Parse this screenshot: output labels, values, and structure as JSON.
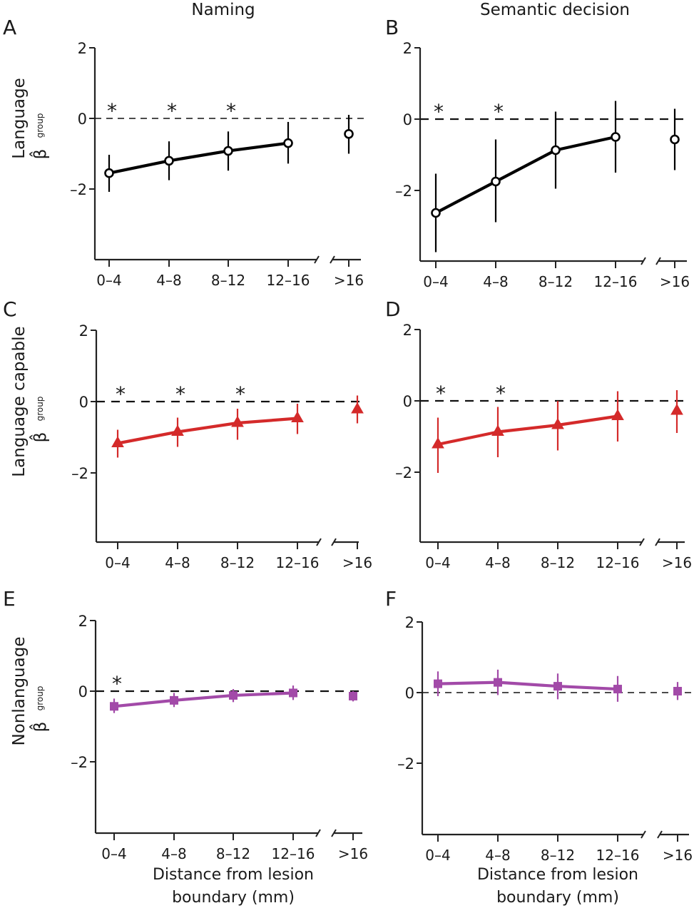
{
  "figure": {
    "column_titles": [
      "Naming",
      "Semantic decision"
    ],
    "row_labels": [
      "Language",
      "Language capable",
      "Nonlanguage"
    ],
    "y_symbol": "β̂",
    "y_subscript": "group",
    "xlabel_line1": "Distance from lesion",
    "xlabel_line2": "boundary (mm)",
    "colors": {
      "Language": "#000000",
      "Language capable": "#d42a2a",
      "Nonlanguage": "#a24aa8"
    }
  },
  "chart_data": [
    {
      "panel": "A",
      "type": "line",
      "title": "Naming",
      "row": "Language",
      "xlabel": "",
      "ylabel": "Language β̂ group",
      "categories": [
        "0–4",
        "4–8",
        "8–12",
        "12–16",
        ">16"
      ],
      "yticks": [
        2,
        0,
        -2
      ],
      "ytick_labels": [
        "2",
        "0",
        "–2"
      ],
      "ylim": [
        -3.8,
        2
      ],
      "marker": "circle",
      "color": "#000000",
      "values": [
        -1.55,
        -1.2,
        -0.92,
        -0.7,
        -0.44
      ],
      "err_low": [
        -2.08,
        -1.75,
        -1.48,
        -1.28,
        -1.0
      ],
      "err_high": [
        -1.03,
        -0.65,
        -0.37,
        -0.1,
        0.1
      ],
      "significant": [
        true,
        true,
        true,
        false,
        false
      ],
      "connected": [
        true,
        true,
        true,
        true,
        false
      ],
      "reference_line": 0
    },
    {
      "panel": "B",
      "type": "line",
      "title": "Semantic decision",
      "row": "Language",
      "xlabel": "",
      "ylabel": "",
      "categories": [
        "0–4",
        "4–8",
        "8–12",
        "12–16",
        ">16"
      ],
      "yticks": [
        2,
        0,
        -2
      ],
      "ytick_labels": [
        "2",
        "0",
        "–2"
      ],
      "ylim": [
        -3.8,
        2
      ],
      "marker": "circle",
      "color": "#000000",
      "values": [
        -2.63,
        -1.75,
        -0.87,
        -0.5,
        -0.57
      ],
      "err_low": [
        -3.73,
        -2.89,
        -1.95,
        -1.5,
        -1.43
      ],
      "err_high": [
        -1.53,
        -0.57,
        0.21,
        0.51,
        0.29
      ],
      "significant": [
        true,
        true,
        false,
        false,
        false
      ],
      "connected": [
        true,
        true,
        true,
        true,
        false
      ],
      "reference_line": 0
    },
    {
      "panel": "C",
      "type": "line",
      "title": "",
      "row": "Language capable",
      "xlabel": "",
      "ylabel": "Language capable β̂ group",
      "categories": [
        "0–4",
        "4–8",
        "8–12",
        "12–16",
        ">16"
      ],
      "yticks": [
        2,
        0,
        -2
      ],
      "ytick_labels": [
        "2",
        "0",
        "–2"
      ],
      "ylim": [
        -3.8,
        2
      ],
      "marker": "triangle",
      "color": "#d42a2a",
      "values": [
        -1.17,
        -0.85,
        -0.6,
        -0.47,
        -0.22
      ],
      "err_low": [
        -1.57,
        -1.27,
        -1.07,
        -0.91,
        -0.61
      ],
      "err_high": [
        -0.79,
        -0.45,
        -0.2,
        -0.06,
        0.17
      ],
      "significant": [
        true,
        true,
        true,
        false,
        false
      ],
      "connected": [
        true,
        true,
        true,
        true,
        false
      ],
      "reference_line": 0
    },
    {
      "panel": "D",
      "type": "line",
      "title": "",
      "row": "Language capable",
      "xlabel": "",
      "ylabel": "",
      "categories": [
        "0–4",
        "4–8",
        "8–12",
        "12–16",
        ">16"
      ],
      "yticks": [
        2,
        0,
        -2
      ],
      "ytick_labels": [
        "2",
        "0",
        "–2"
      ],
      "ylim": [
        -3.8,
        2
      ],
      "marker": "triangle",
      "color": "#d42a2a",
      "values": [
        -1.22,
        -0.87,
        -0.68,
        -0.43,
        -0.28
      ],
      "err_low": [
        -2.02,
        -1.58,
        -1.39,
        -1.14,
        -0.9
      ],
      "err_high": [
        -0.47,
        -0.17,
        0.0,
        0.27,
        0.3
      ],
      "significant": [
        true,
        true,
        false,
        false,
        false
      ],
      "connected": [
        true,
        true,
        true,
        true,
        false
      ],
      "reference_line": 0
    },
    {
      "panel": "E",
      "type": "line",
      "title": "",
      "row": "Nonlanguage",
      "xlabel": "Distance from lesion boundary (mm)",
      "ylabel": "Nonlanguage β̂ group",
      "categories": [
        "0–4",
        "4–8",
        "8–12",
        "12–16",
        ">16"
      ],
      "yticks": [
        2,
        0,
        -2
      ],
      "ytick_labels": [
        "2",
        "0",
        "–2"
      ],
      "ylim": [
        -3.8,
        2
      ],
      "marker": "square",
      "color": "#a24aa8",
      "values": [
        -0.43,
        -0.26,
        -0.12,
        -0.05,
        -0.14
      ],
      "err_low": [
        -0.62,
        -0.45,
        -0.31,
        -0.25,
        -0.29
      ],
      "err_high": [
        -0.21,
        -0.05,
        0.06,
        0.16,
        0.0
      ],
      "significant": [
        true,
        false,
        false,
        false,
        false
      ],
      "connected": [
        true,
        true,
        true,
        true,
        false
      ],
      "reference_line": 0
    },
    {
      "panel": "F",
      "type": "line",
      "title": "",
      "row": "Nonlanguage",
      "xlabel": "Distance from lesion boundary (mm)",
      "ylabel": "",
      "categories": [
        "0–4",
        "4–8",
        "8–12",
        "12–16",
        ">16"
      ],
      "yticks": [
        2,
        0,
        -2
      ],
      "ytick_labels": [
        "2",
        "0",
        "–2"
      ],
      "ylim": [
        -3.8,
        2
      ],
      "marker": "square",
      "color": "#a24aa8",
      "values": [
        0.25,
        0.29,
        0.18,
        0.1,
        0.04
      ],
      "err_low": [
        -0.1,
        -0.07,
        -0.19,
        -0.26,
        -0.21
      ],
      "err_high": [
        0.6,
        0.65,
        0.54,
        0.47,
        0.3
      ],
      "significant": [
        false,
        false,
        false,
        false,
        false
      ],
      "connected": [
        true,
        true,
        true,
        true,
        false
      ],
      "reference_line": 0
    }
  ]
}
